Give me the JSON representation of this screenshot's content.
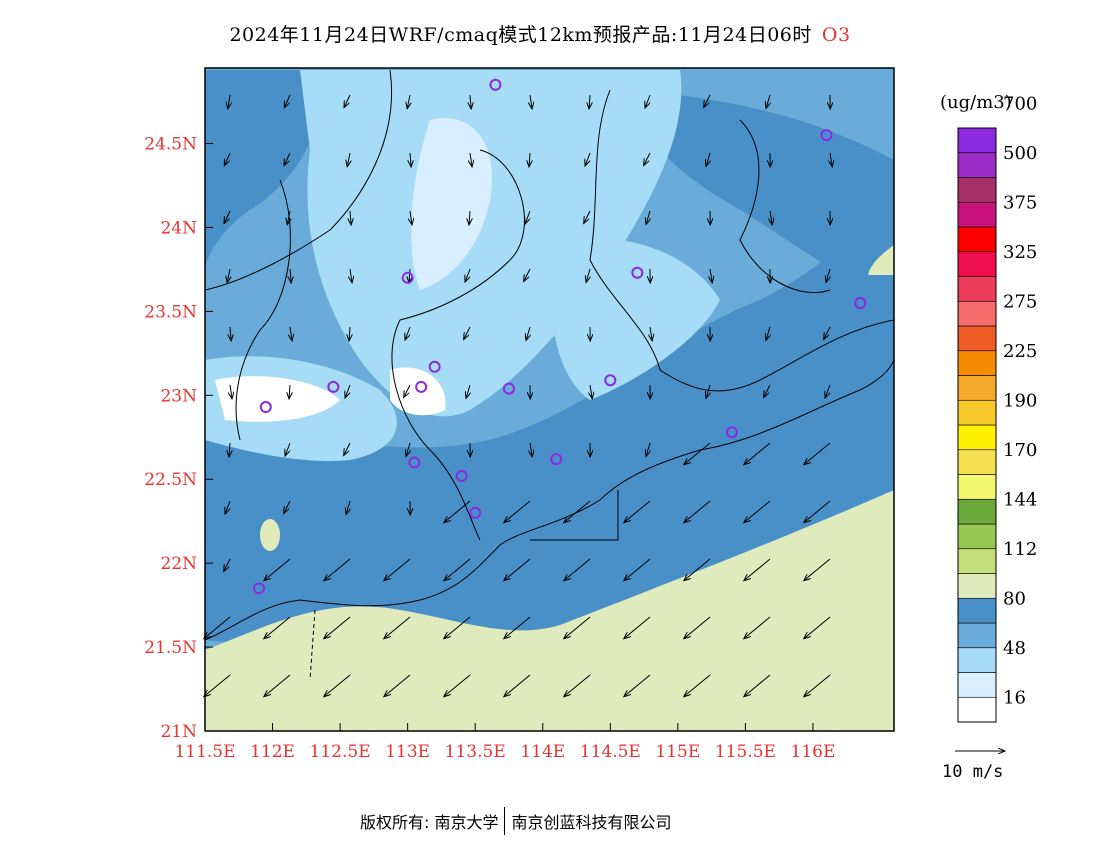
{
  "title": {
    "main": "2024年11月24日WRF/cmaq模式12km预报产品:11月24日06时",
    "species": "O3"
  },
  "map": {
    "lon_range": [
      111.5,
      116.6
    ],
    "lat_range": [
      21.0,
      24.95
    ],
    "x_ticks": [
      "111.5E",
      "112E",
      "112.5E",
      "113E",
      "113.5E",
      "114E",
      "114.5E",
      "115E",
      "115.5E",
      "116E"
    ],
    "x_tick_values": [
      111.5,
      112,
      112.5,
      113,
      113.5,
      114,
      114.5,
      115,
      115.5,
      116
    ],
    "y_ticks": [
      "21N",
      "21.5N",
      "22N",
      "22.5N",
      "23N",
      "23.5N",
      "24N",
      "24.5N"
    ],
    "y_tick_values": [
      21,
      21.5,
      22,
      22.5,
      23,
      23.5,
      24,
      24.5
    ],
    "stations": [
      {
        "lon": 113.65,
        "lat": 24.85
      },
      {
        "lon": 116.1,
        "lat": 24.55
      },
      {
        "lon": 113.0,
        "lat": 23.7
      },
      {
        "lon": 114.7,
        "lat": 23.73
      },
      {
        "lon": 116.35,
        "lat": 23.55
      },
      {
        "lon": 112.45,
        "lat": 23.05
      },
      {
        "lon": 111.95,
        "lat": 22.93
      },
      {
        "lon": 113.1,
        "lat": 23.05
      },
      {
        "lon": 113.2,
        "lat": 23.17
      },
      {
        "lon": 113.75,
        "lat": 23.04
      },
      {
        "lon": 114.5,
        "lat": 23.09
      },
      {
        "lon": 113.05,
        "lat": 22.6
      },
      {
        "lon": 113.4,
        "lat": 22.52
      },
      {
        "lon": 114.1,
        "lat": 22.62
      },
      {
        "lon": 113.5,
        "lat": 22.3
      },
      {
        "lon": 115.4,
        "lat": 22.78
      },
      {
        "lon": 111.9,
        "lat": 21.85
      }
    ]
  },
  "legend": {
    "unit": "(ug/m3)",
    "colors": [
      "#ffffff",
      "#d9efff",
      "#a6dcf5",
      "#6aacd9",
      "#4a90c8",
      "#e0ebbd",
      "#c5df7a",
      "#97c753",
      "#6aa93a",
      "#f2f76e",
      "#f5e050",
      "#fff000",
      "#f7c92a",
      "#f6a82a",
      "#f58b00",
      "#ef5b24",
      "#f66b6b",
      "#ef3b5b",
      "#ef0f4e",
      "#ff0000",
      "#c8117a",
      "#a8306a",
      "#9b2ec8",
      "#8a2be2"
    ],
    "labels": [
      "16",
      "48",
      "80",
      "112",
      "144",
      "170",
      "190",
      "225",
      "275",
      "325",
      "375",
      "500",
      "700"
    ],
    "reference_vector": "10 m/s"
  },
  "footer": {
    "copyright": "版权所有: 南京大学",
    "company": "南京创蓝科技有限公司"
  }
}
